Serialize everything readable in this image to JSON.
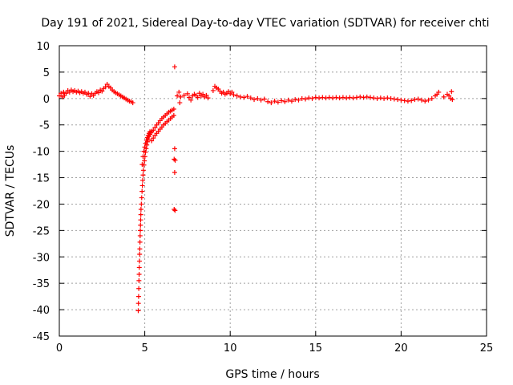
{
  "chart_data": {
    "type": "scatter",
    "title": "Day 191 of 2021, Sidereal Day-to-day VTEC variation (SDTVAR) for receiver chti",
    "xlabel": "GPS time / hours",
    "ylabel": "SDTVAR / TECUs",
    "xlim": [
      0,
      25
    ],
    "ylim": [
      -45,
      10
    ],
    "xticks": [
      0,
      5,
      10,
      15,
      20,
      25
    ],
    "yticks": [
      10,
      5,
      0,
      -5,
      -10,
      -15,
      -20,
      -25,
      -30,
      -35,
      -40,
      -45
    ],
    "grid": true,
    "legend": "none",
    "marker": "plus",
    "color": "#ff0000",
    "series": [
      {
        "name": "SDTVAR",
        "points": [
          [
            0.0,
            0.5
          ],
          [
            0.1,
            1.0
          ],
          [
            0.2,
            0.3
          ],
          [
            0.25,
            1.2
          ],
          [
            0.3,
            0.6
          ],
          [
            0.4,
            1.0
          ],
          [
            0.5,
            1.5
          ],
          [
            0.6,
            1.2
          ],
          [
            0.7,
            1.6
          ],
          [
            0.8,
            1.3
          ],
          [
            0.9,
            1.5
          ],
          [
            1.0,
            1.2
          ],
          [
            1.1,
            1.4
          ],
          [
            1.2,
            1.1
          ],
          [
            1.3,
            1.3
          ],
          [
            1.4,
            1.0
          ],
          [
            1.5,
            1.2
          ],
          [
            1.6,
            0.8
          ],
          [
            1.7,
            1.0
          ],
          [
            1.8,
            0.4
          ],
          [
            1.9,
            0.9
          ],
          [
            2.0,
            0.6
          ],
          [
            2.1,
            1.0
          ],
          [
            2.2,
            1.3
          ],
          [
            2.3,
            1.1
          ],
          [
            2.4,
            1.6
          ],
          [
            2.5,
            1.4
          ],
          [
            2.6,
            1.9
          ],
          [
            2.7,
            2.2
          ],
          [
            2.8,
            2.7
          ],
          [
            2.9,
            2.3
          ],
          [
            3.0,
            2.0
          ],
          [
            3.1,
            1.6
          ],
          [
            3.2,
            1.3
          ],
          [
            3.3,
            1.1
          ],
          [
            3.4,
            0.9
          ],
          [
            3.5,
            0.7
          ],
          [
            3.6,
            0.5
          ],
          [
            3.7,
            0.3
          ],
          [
            3.8,
            0.1
          ],
          [
            3.9,
            -0.1
          ],
          [
            4.0,
            -0.3
          ],
          [
            4.1,
            -0.5
          ],
          [
            4.2,
            -0.6
          ],
          [
            4.3,
            -0.8
          ],
          [
            4.62,
            -40.2
          ],
          [
            4.63,
            -38.8
          ],
          [
            4.64,
            -37.5
          ],
          [
            4.65,
            -36.0
          ],
          [
            4.66,
            -34.5
          ],
          [
            4.67,
            -33.3
          ],
          [
            4.68,
            -32.0
          ],
          [
            4.69,
            -30.8
          ],
          [
            4.7,
            -29.5
          ],
          [
            4.71,
            -28.5
          ],
          [
            4.72,
            -27.2
          ],
          [
            4.73,
            -26.0
          ],
          [
            4.74,
            -25.0
          ],
          [
            4.75,
            -24.0
          ],
          [
            4.76,
            -23.0
          ],
          [
            4.77,
            -22.0
          ],
          [
            4.78,
            -21.0
          ],
          [
            4.8,
            -20.0
          ],
          [
            4.82,
            -18.8
          ],
          [
            4.84,
            -17.6
          ],
          [
            4.86,
            -16.5
          ],
          [
            4.88,
            -15.5
          ],
          [
            4.9,
            -14.5
          ],
          [
            4.92,
            -13.6
          ],
          [
            4.95,
            -12.6
          ],
          [
            4.98,
            -11.8
          ],
          [
            5.01,
            -11.0
          ],
          [
            5.04,
            -10.2
          ],
          [
            5.08,
            -9.5
          ],
          [
            5.12,
            -8.8
          ],
          [
            5.16,
            -8.2
          ],
          [
            5.2,
            -7.7
          ],
          [
            5.25,
            -7.2
          ],
          [
            5.3,
            -6.8
          ],
          [
            5.35,
            -6.5
          ],
          [
            5.4,
            -6.2
          ],
          [
            4.85,
            -12.5
          ],
          [
            4.9,
            -11.0
          ],
          [
            4.95,
            -10.0
          ],
          [
            5.0,
            -9.2
          ],
          [
            5.05,
            -8.5
          ],
          [
            5.1,
            -7.9
          ],
          [
            5.15,
            -7.4
          ],
          [
            5.2,
            -7.0
          ],
          [
            5.25,
            -6.6
          ],
          [
            5.3,
            -6.3
          ],
          [
            5.4,
            -8.0
          ],
          [
            5.5,
            -7.5
          ],
          [
            5.6,
            -7.0
          ],
          [
            5.7,
            -6.6
          ],
          [
            5.8,
            -6.2
          ],
          [
            5.9,
            -5.8
          ],
          [
            6.0,
            -5.4
          ],
          [
            6.1,
            -5.0
          ],
          [
            6.2,
            -4.7
          ],
          [
            6.3,
            -4.4
          ],
          [
            6.4,
            -4.1
          ],
          [
            6.5,
            -3.8
          ],
          [
            6.6,
            -3.5
          ],
          [
            6.7,
            -3.2
          ],
          [
            5.5,
            -6.0
          ],
          [
            5.6,
            -5.5
          ],
          [
            5.7,
            -5.0
          ],
          [
            5.8,
            -4.6
          ],
          [
            5.9,
            -4.2
          ],
          [
            6.0,
            -3.8
          ],
          [
            6.1,
            -3.5
          ],
          [
            6.2,
            -3.2
          ],
          [
            6.3,
            -2.9
          ],
          [
            6.4,
            -2.6
          ],
          [
            6.5,
            -2.4
          ],
          [
            6.6,
            -2.2
          ],
          [
            6.7,
            -2.0
          ],
          [
            6.75,
            6.0
          ],
          [
            6.75,
            -9.5
          ],
          [
            6.72,
            -11.5
          ],
          [
            6.78,
            -11.7
          ],
          [
            6.75,
            -14.0
          ],
          [
            6.72,
            -21.0
          ],
          [
            6.77,
            -21.2
          ],
          [
            6.9,
            0.5
          ],
          [
            7.0,
            1.2
          ],
          [
            7.05,
            -0.8
          ],
          [
            7.1,
            0.3
          ],
          [
            7.3,
            0.6
          ],
          [
            7.5,
            0.9
          ],
          [
            7.6,
            0.2
          ],
          [
            7.7,
            -0.3
          ],
          [
            7.8,
            0.5
          ],
          [
            7.9,
            0.8
          ],
          [
            8.0,
            0.6
          ],
          [
            8.1,
            0.2
          ],
          [
            8.2,
            1.0
          ],
          [
            8.3,
            0.5
          ],
          [
            8.4,
            0.8
          ],
          [
            8.5,
            0.3
          ],
          [
            8.6,
            0.6
          ],
          [
            8.7,
            0.1
          ],
          [
            9.0,
            1.5
          ],
          [
            9.1,
            2.3
          ],
          [
            9.2,
            2.0
          ],
          [
            9.3,
            1.8
          ],
          [
            9.4,
            1.4
          ],
          [
            9.5,
            1.0
          ],
          [
            9.6,
            1.2
          ],
          [
            9.7,
            0.8
          ],
          [
            9.8,
            1.0
          ],
          [
            9.9,
            1.3
          ],
          [
            10.0,
            0.9
          ],
          [
            10.1,
            1.2
          ],
          [
            10.2,
            0.7
          ],
          [
            10.4,
            0.5
          ],
          [
            10.6,
            0.3
          ],
          [
            10.8,
            0.2
          ],
          [
            11.0,
            0.4
          ],
          [
            11.2,
            0.1
          ],
          [
            11.4,
            -0.2
          ],
          [
            11.6,
            0.0
          ],
          [
            11.8,
            -0.3
          ],
          [
            12.0,
            -0.1
          ],
          [
            12.2,
            -0.6
          ],
          [
            12.4,
            -0.8
          ],
          [
            12.6,
            -0.5
          ],
          [
            12.8,
            -0.7
          ],
          [
            13.0,
            -0.4
          ],
          [
            13.2,
            -0.6
          ],
          [
            13.4,
            -0.3
          ],
          [
            13.6,
            -0.5
          ],
          [
            13.8,
            -0.2
          ],
          [
            14.0,
            -0.3
          ],
          [
            14.2,
            0.0
          ],
          [
            14.4,
            -0.1
          ],
          [
            14.6,
            0.1
          ],
          [
            14.8,
            0.0
          ],
          [
            15.0,
            0.2
          ],
          [
            15.2,
            0.1
          ],
          [
            15.4,
            0.2
          ],
          [
            15.6,
            0.1
          ],
          [
            15.8,
            0.2
          ],
          [
            16.0,
            0.1
          ],
          [
            16.2,
            0.2
          ],
          [
            16.4,
            0.1
          ],
          [
            16.6,
            0.2
          ],
          [
            16.8,
            0.1
          ],
          [
            17.0,
            0.2
          ],
          [
            17.2,
            0.1
          ],
          [
            17.4,
            0.2
          ],
          [
            17.6,
            0.3
          ],
          [
            17.8,
            0.2
          ],
          [
            18.0,
            0.3
          ],
          [
            18.2,
            0.2
          ],
          [
            18.4,
            0.1
          ],
          [
            18.6,
            0.0
          ],
          [
            18.8,
            0.1
          ],
          [
            19.0,
            0.0
          ],
          [
            19.2,
            0.1
          ],
          [
            19.4,
            0.0
          ],
          [
            19.6,
            -0.1
          ],
          [
            19.8,
            -0.2
          ],
          [
            20.0,
            -0.3
          ],
          [
            20.2,
            -0.4
          ],
          [
            20.4,
            -0.5
          ],
          [
            20.6,
            -0.4
          ],
          [
            20.8,
            -0.2
          ],
          [
            21.0,
            -0.1
          ],
          [
            21.2,
            -0.3
          ],
          [
            21.4,
            -0.5
          ],
          [
            21.6,
            -0.3
          ],
          [
            21.8,
            0.0
          ],
          [
            22.0,
            0.5
          ],
          [
            22.1,
            0.8
          ],
          [
            22.2,
            1.2
          ],
          [
            22.5,
            0.3
          ],
          [
            22.7,
            0.8
          ],
          [
            22.8,
            0.5
          ],
          [
            22.9,
            0.0
          ],
          [
            23.0,
            -0.2
          ],
          [
            22.95,
            1.3
          ]
        ]
      }
    ]
  }
}
